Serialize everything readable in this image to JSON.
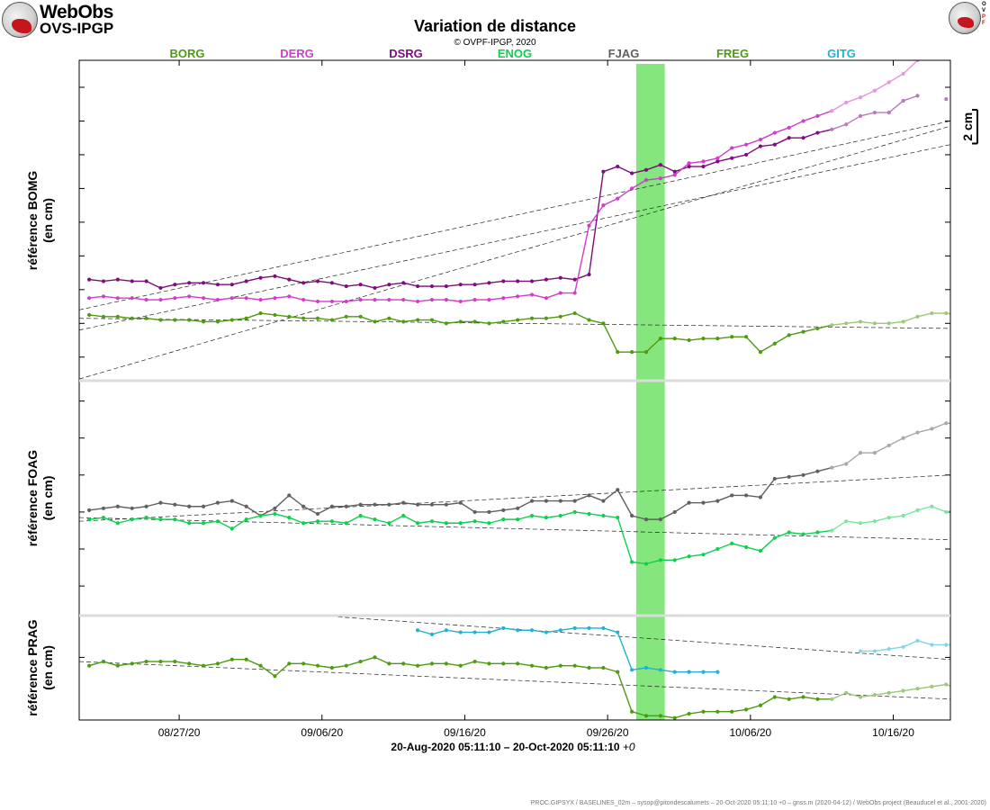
{
  "header": {
    "logo_line1": "WebObs",
    "logo_line2": "OVS-IPGP",
    "title": "Variation de distance",
    "copyright": "© OVPF-IPGP, 2020",
    "right_logo_letters": [
      "O",
      "V",
      "P",
      "F"
    ]
  },
  "footer": "PROC.GIPSYX / BASELINES_02m – sysop@pitondescalumets – 20-Oct-2020 05:11:10 +0 – gnss.m (2020-04-12) / WebObs project (Beauducel et al., 2001-2020)",
  "colors": {
    "BORG": "#4f9a10",
    "DERG": "#d03ec9",
    "DSRG": "#7e0d7e",
    "ENOG": "#0ecf50",
    "FJAG": "#606060",
    "FREG": "#4f9a10",
    "GITG": "#1fb3d0",
    "event": "#84e67c"
  },
  "chart_data": {
    "type": "line",
    "legend": [
      "BORG",
      "DERG",
      "DSRG",
      "ENOG",
      "FJAG",
      "FREG",
      "GITG"
    ],
    "xlabel": "20-Aug-2020 05:11:10 – 20-Oct-2020 05:11:10",
    "xlabel_suffix": "+0",
    "x_ticks": [
      "08/27/20",
      "09/06/20",
      "09/16/20",
      "09/26/20",
      "10/06/20",
      "10/16/20"
    ],
    "x_tick_days": [
      7,
      17,
      27,
      37,
      47,
      57
    ],
    "xlim": [
      0,
      61
    ],
    "scale_label": "2 cm",
    "event_window_days": [
      39.0,
      41.0
    ],
    "panels": [
      {
        "ylabel": [
          "référence BOMG",
          "(en cm)"
        ],
        "ylim": [
          -1.4,
          17.6
        ],
        "y_ticks": [
          0,
          2,
          4,
          6,
          8,
          10,
          12,
          14,
          16
        ],
        "x0": 0.7,
        "dx": 1.0,
        "series": [
          {
            "name": "DSRG",
            "values": [
              4.6,
              4.5,
              4.6,
              4.5,
              4.5,
              4.1,
              4.3,
              4.4,
              4.4,
              4.3,
              4.3,
              4.5,
              4.7,
              4.8,
              4.6,
              4.4,
              4.5,
              4.4,
              4.2,
              4.3,
              4.1,
              4.3,
              4.4,
              4.2,
              4.2,
              4.2,
              4.3,
              4.3,
              4.4,
              4.5,
              4.5,
              4.5,
              4.6,
              4.7,
              4.6,
              4.9,
              11.0,
              11.3,
              10.9,
              11.1,
              11.4,
              11.0,
              11.3,
              11.3,
              11.6,
              11.8,
              12.0,
              12.5,
              12.6,
              13.0,
              13.0,
              13.3,
              13.5,
              13.8,
              14.3,
              14.5,
              14.5,
              15.2,
              15.5,
              null,
              15.3,
              null
            ]
          },
          {
            "name": "DERG",
            "values": [
              3.5,
              3.6,
              3.5,
              3.5,
              3.4,
              3.4,
              3.5,
              3.6,
              3.5,
              3.4,
              3.5,
              3.5,
              3.4,
              3.5,
              3.6,
              3.4,
              3.3,
              3.3,
              3.3,
              3.4,
              3.4,
              3.4,
              3.4,
              3.3,
              3.4,
              3.4,
              3.3,
              3.4,
              3.4,
              3.5,
              3.6,
              3.7,
              3.5,
              3.8,
              3.8,
              7.8,
              9.0,
              9.4,
              10.0,
              10.5,
              10.6,
              10.8,
              11.5,
              11.6,
              11.8,
              12.4,
              12.6,
              12.9,
              13.3,
              13.6,
              14.0,
              14.3,
              14.6,
              15.1,
              15.4,
              15.8,
              16.3,
              16.8,
              17.6,
              null,
              null,
              null
            ]
          },
          {
            "name": "BORG",
            "values": [
              2.5,
              2.4,
              2.4,
              2.3,
              2.3,
              2.2,
              2.2,
              2.2,
              2.1,
              2.1,
              2.2,
              2.3,
              2.6,
              2.5,
              2.4,
              2.3,
              2.3,
              2.2,
              2.4,
              2.4,
              2.1,
              2.3,
              2.1,
              2.2,
              2.2,
              2.0,
              2.1,
              2.1,
              2.0,
              2.1,
              2.2,
              2.3,
              2.3,
              2.4,
              2.6,
              2.2,
              2.0,
              0.3,
              0.3,
              0.3,
              1.1,
              1.1,
              1.0,
              1.1,
              1.1,
              1.2,
              1.2,
              0.3,
              0.8,
              1.3,
              1.5,
              1.7,
              1.9,
              2.0,
              2.1,
              2.0,
              2.0,
              2.1,
              2.4,
              2.6,
              2.6,
              2.5
            ]
          }
        ],
        "trends": [
          {
            "x": [
              0,
              61
            ],
            "y": [
              -1.3,
              13.7
            ]
          },
          {
            "x": [
              0,
              61
            ],
            "y": [
              1.6,
              12.6
            ]
          },
          {
            "x": [
              0,
              61
            ],
            "y": [
              2.8,
              14.0
            ]
          },
          {
            "x": [
              0,
              61
            ],
            "y": [
              2.3,
              1.7
            ]
          }
        ]
      },
      {
        "ylabel": [
          "référence FOAG",
          "(en cm)"
        ],
        "ylim": [
          -5.6,
          7.1
        ],
        "y_ticks": [
          -4,
          -2,
          0,
          2,
          4,
          6
        ],
        "x0": 0.7,
        "dx": 1.0,
        "series": [
          {
            "name": "FJAG",
            "values": [
              0.1,
              0.2,
              0.3,
              0.2,
              0.3,
              0.5,
              0.4,
              0.3,
              0.3,
              0.5,
              0.6,
              0.3,
              -0.2,
              0.2,
              0.9,
              0.3,
              -0.1,
              0.3,
              0.3,
              0.4,
              0.4,
              0.4,
              0.5,
              0.4,
              0.4,
              0.4,
              0.5,
              0.0,
              0.0,
              0.1,
              0.2,
              0.6,
              0.6,
              0.6,
              0.6,
              0.9,
              0.6,
              1.2,
              -0.2,
              -0.4,
              -0.4,
              0.0,
              0.5,
              0.5,
              0.6,
              0.9,
              0.9,
              0.8,
              1.8,
              1.9,
              2.0,
              2.2,
              2.4,
              2.6,
              3.2,
              3.2,
              3.6,
              4.0,
              4.3,
              4.5,
              4.8,
              4.8
            ]
          },
          {
            "name": "ENOG",
            "values": [
              -0.4,
              -0.3,
              -0.6,
              -0.4,
              -0.3,
              -0.4,
              -0.4,
              -0.6,
              -0.6,
              -0.5,
              -0.9,
              -0.4,
              -0.2,
              -0.1,
              -0.3,
              -0.6,
              -0.5,
              -0.5,
              -0.6,
              -0.2,
              -0.4,
              -0.6,
              -0.2,
              -0.6,
              -0.5,
              -0.6,
              -0.6,
              -0.5,
              -0.6,
              -0.4,
              -0.4,
              -0.2,
              -0.3,
              -0.2,
              0.0,
              -0.1,
              -0.2,
              -0.3,
              -2.7,
              -2.8,
              -2.6,
              -2.6,
              -2.4,
              -2.3,
              -2.0,
              -1.7,
              -1.9,
              -2.1,
              -1.4,
              -1.1,
              -1.2,
              -1.1,
              -1.0,
              -0.5,
              -0.6,
              -0.5,
              -0.3,
              -0.2,
              0.1,
              0.3,
              0.0,
              0.2
            ]
          }
        ],
        "trends": [
          {
            "x": [
              0,
              61
            ],
            "y": [
              -0.5,
              2.0
            ]
          },
          {
            "x": [
              0,
              61
            ],
            "y": [
              -0.3,
              -1.5
            ]
          }
        ]
      },
      {
        "ylabel": [
          "référence PRAG",
          "(en cm)"
        ],
        "ylim": [
          -3.0,
          2.0
        ],
        "y_ticks": [
          0
        ],
        "x0": 0.7,
        "dx": 1.0,
        "series": [
          {
            "name": "GITG",
            "values": [
              null,
              null,
              null,
              null,
              null,
              null,
              null,
              null,
              null,
              null,
              null,
              null,
              null,
              null,
              null,
              null,
              null,
              null,
              null,
              null,
              null,
              null,
              null,
              1.3,
              1.1,
              1.3,
              1.2,
              1.2,
              1.2,
              1.4,
              1.3,
              1.3,
              1.2,
              1.3,
              1.4,
              1.4,
              1.4,
              1.2,
              -0.6,
              -0.5,
              -0.6,
              -0.7,
              -0.7,
              -0.7,
              -0.7,
              null,
              null,
              null,
              null,
              null,
              null,
              null,
              null,
              null,
              0.3,
              0.3,
              0.4,
              0.5,
              0.8,
              0.6,
              0.6,
              0.6
            ]
          },
          {
            "name": "FREG",
            "values": [
              -0.4,
              -0.2,
              -0.4,
              -0.3,
              -0.2,
              -0.2,
              -0.2,
              -0.3,
              -0.4,
              -0.3,
              -0.1,
              -0.1,
              -0.4,
              -0.9,
              -0.3,
              -0.3,
              -0.4,
              -0.5,
              -0.4,
              -0.2,
              0.0,
              -0.3,
              -0.3,
              -0.4,
              -0.3,
              -0.3,
              -0.4,
              -0.2,
              -0.3,
              -0.3,
              -0.3,
              -0.4,
              -0.5,
              -0.4,
              -0.4,
              -0.5,
              -0.5,
              -0.7,
              -2.6,
              -2.8,
              -2.8,
              -2.9,
              -2.7,
              -2.6,
              -2.6,
              -2.6,
              -2.5,
              -2.3,
              -1.9,
              -2.0,
              -1.9,
              -2.0,
              -2.0,
              -1.7,
              -1.9,
              -1.8,
              -1.7,
              -1.6,
              -1.5,
              -1.4,
              -1.3,
              -1.5
            ]
          }
        ],
        "trends": [
          {
            "x": [
              0,
              61
            ],
            "y": [
              2.8,
              -0.1
            ]
          },
          {
            "x": [
              0,
              61
            ],
            "y": [
              -0.2,
              -2.0
            ]
          }
        ]
      }
    ]
  }
}
